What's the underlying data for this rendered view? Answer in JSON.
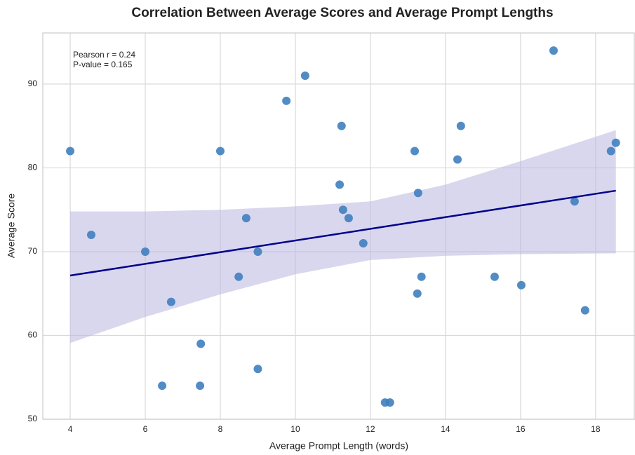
{
  "chart_data": {
    "type": "scatter",
    "title": "Correlation Between Average Scores and Average Prompt Lengths",
    "x_label": "Average Prompt Length (words)",
    "y_label": "Average Score",
    "annotations": [
      "Pearson r = 0.24",
      "P-value = 0.165"
    ],
    "xlim": [
      3.27,
      19.05
    ],
    "ylim": [
      50,
      96.1
    ],
    "xticks": [
      4,
      6,
      8,
      10,
      12,
      14,
      16,
      18
    ],
    "yticks": [
      50,
      60,
      70,
      80,
      90
    ],
    "grid": true,
    "series": [
      {
        "color": "#3f7fbf",
        "x": [
          4,
          4.56,
          6,
          6.45,
          6.69,
          7.46,
          7.48,
          8,
          8.49,
          8.69,
          9.0,
          9.0,
          9.76,
          10.26,
          11.18,
          11.23,
          11.27,
          11.42,
          11.81,
          12.39,
          12.52,
          13.18,
          13.25,
          13.27,
          13.36,
          14.32,
          14.41,
          15.31,
          16.02,
          16.88,
          17.44,
          17.72,
          18.41,
          18.54
        ],
        "values": [
          82,
          72,
          70,
          54,
          64,
          54,
          59,
          82,
          67,
          74,
          70,
          56,
          88,
          91,
          78,
          85,
          75,
          74,
          71,
          52,
          52,
          82,
          65,
          77,
          67,
          81,
          85,
          67,
          66,
          94,
          76,
          63,
          82,
          83
        ]
      }
    ],
    "regression": {
      "color": "#00008b",
      "x": [
        4,
        18.54
      ],
      "y": [
        67.15,
        77.28
      ]
    },
    "confidence_band": {
      "color": "#b9b7e0",
      "x": [
        4,
        6,
        8,
        10,
        12,
        14,
        16,
        18.54
      ],
      "upper": [
        74.8,
        74.8,
        75.0,
        75.4,
        76.0,
        78.0,
        80.8,
        84.5
      ],
      "lower": [
        59.1,
        62.2,
        64.9,
        67.3,
        69.0,
        69.5,
        69.7,
        69.8
      ]
    }
  }
}
